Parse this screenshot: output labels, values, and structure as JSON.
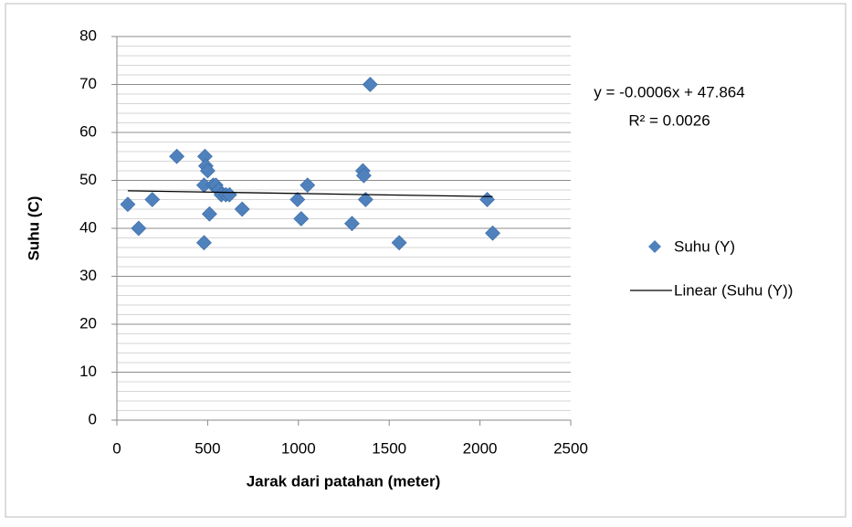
{
  "chart_data": {
    "type": "scatter",
    "xlabel": "Jarak dari patahan (meter)",
    "ylabel": "Suhu (C)",
    "series": [
      {
        "name": "Suhu (Y)",
        "color": "#4f81bd",
        "x": [
          60,
          120,
          195,
          330,
          480,
          485,
          490,
          500,
          480,
          510,
          530,
          545,
          560,
          575,
          600,
          620,
          690,
          995,
          1015,
          1050,
          1295,
          1355,
          1360,
          1370,
          1395,
          1555,
          2040,
          2070
        ],
        "values": [
          45,
          40,
          46,
          55,
          37,
          55,
          53,
          52,
          49,
          43,
          49,
          49,
          48,
          47,
          47,
          47,
          44,
          46,
          42,
          49,
          41,
          52,
          51,
          46,
          70,
          37,
          46,
          39
        ]
      }
    ],
    "trendline": {
      "name": "Linear (Suhu (Y))",
      "color": "#000000",
      "slope": -0.0006,
      "intercept": 47.864,
      "equation": "y = -0.0006x + 47.864",
      "r2": "R² = 0.0026"
    },
    "xlim": [
      0,
      2500
    ],
    "xticks": [
      0,
      500,
      1000,
      1500,
      2000,
      2500
    ],
    "ylim": [
      0,
      80
    ],
    "yticks": [
      0,
      10,
      20,
      30,
      40,
      50,
      60,
      70,
      80
    ],
    "grid": true,
    "minor_ygrid": [
      2,
      4,
      6,
      8,
      12,
      14,
      16,
      18,
      22,
      24,
      26,
      28,
      32,
      34,
      36,
      38,
      42,
      44,
      46,
      48,
      52,
      54,
      56,
      58,
      62,
      64,
      66,
      68,
      72,
      74,
      76,
      78
    ],
    "legend": "right"
  }
}
